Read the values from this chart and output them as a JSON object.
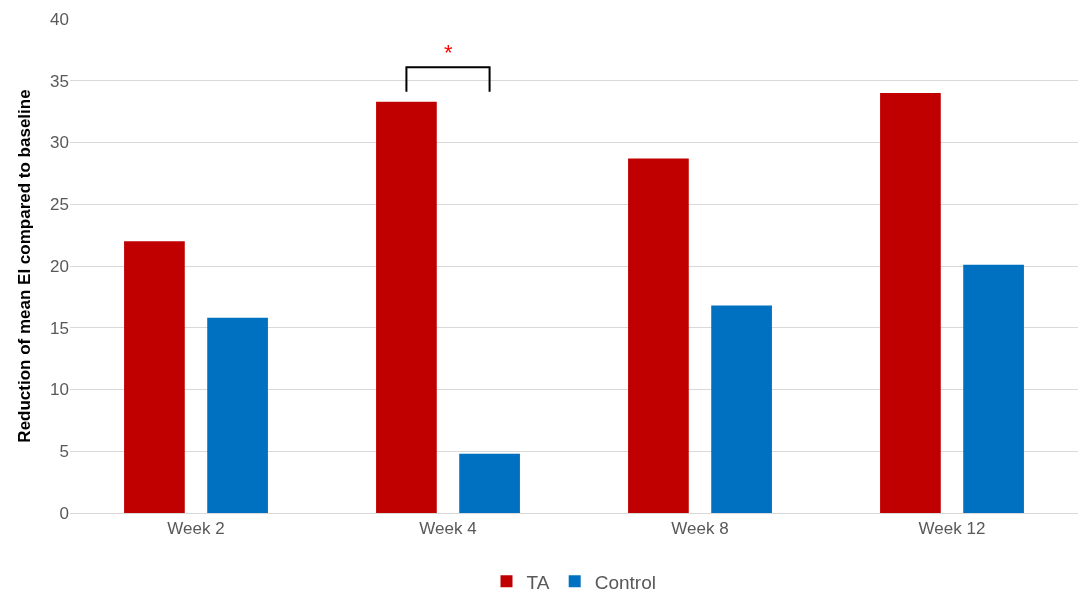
{
  "chart_data": {
    "type": "bar",
    "ylabel": "Reduction of mean EI compared to baseline",
    "categories": [
      "Week 2",
      "Week 4",
      "Week 8",
      "Week 12"
    ],
    "series": [
      {
        "name": "TA",
        "color": "#c00000",
        "values": [
          22.0,
          33.3,
          28.7,
          34.0
        ]
      },
      {
        "name": "Control",
        "color": "#0070c0",
        "values": [
          15.8,
          4.8,
          16.8,
          20.1
        ]
      }
    ],
    "ylim": [
      0,
      40
    ],
    "yticks": [
      0,
      5,
      10,
      15,
      20,
      25,
      30,
      35,
      40
    ],
    "grid": "y",
    "legend": "bottom",
    "annotations": [
      "*"
    ]
  }
}
